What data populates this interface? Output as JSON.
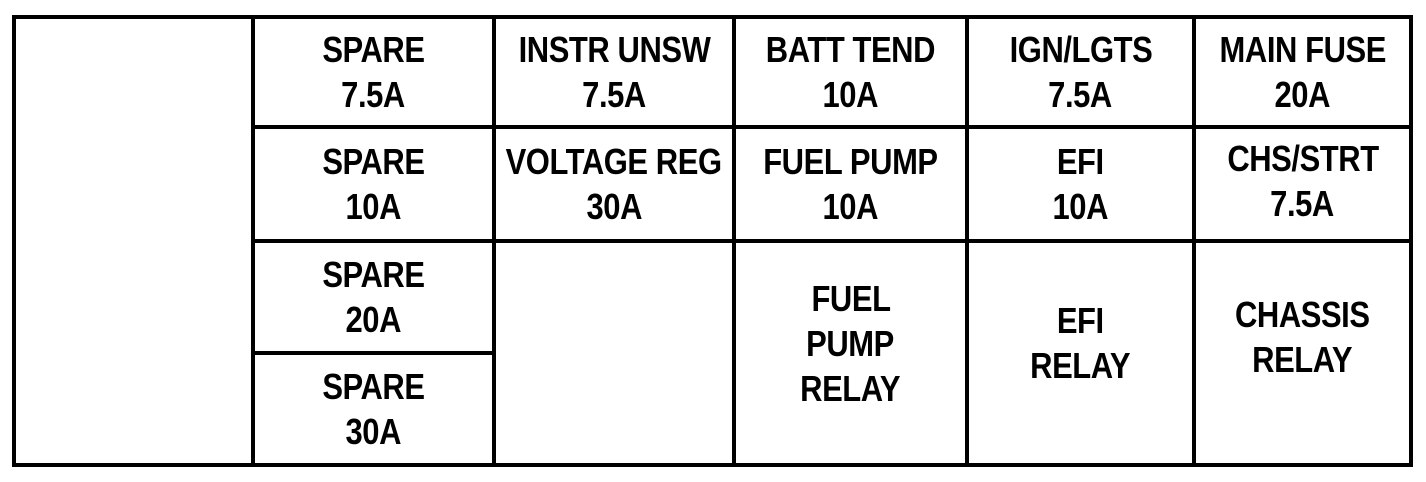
{
  "fuses": [
    {
      "name": "SPARE",
      "rating": "7.5A"
    },
    {
      "name": "INSTR UNSW",
      "rating": "7.5A"
    },
    {
      "name": "BATT TEND",
      "rating": "10A"
    },
    {
      "name": "IGN/LGTS",
      "rating": "7.5A"
    },
    {
      "name": "MAIN FUSE",
      "rating": "20A"
    },
    {
      "name": "SPARE",
      "rating": "10A"
    },
    {
      "name": "VOLTAGE REG",
      "rating": "30A"
    },
    {
      "name": "FUEL PUMP",
      "rating": "10A"
    },
    {
      "name": "EFI",
      "rating": "10A"
    },
    {
      "name": "CHS/STRT",
      "rating": "7.5A"
    },
    {
      "name": "SPARE",
      "rating": "20A"
    },
    {
      "name": "SPARE",
      "rating": "30A"
    }
  ],
  "relays": [
    {
      "lines": [
        "FUEL",
        "PUMP",
        "RELAY"
      ]
    },
    {
      "lines": [
        "EFI",
        "RELAY"
      ]
    },
    {
      "lines": [
        "CHASSIS",
        "RELAY"
      ]
    }
  ]
}
